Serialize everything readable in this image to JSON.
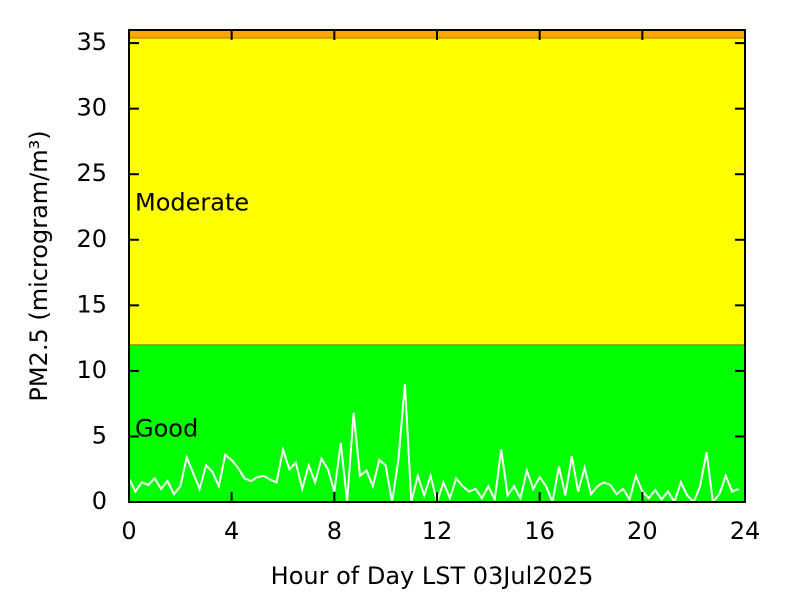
{
  "chart_data": {
    "type": "line",
    "xlabel": "Hour of Day LST 03Jul2025",
    "ylabel": "PM2.5 (microgram/m³)",
    "xlim": [
      0,
      24
    ],
    "xticks": [
      0,
      4,
      8,
      12,
      16,
      20,
      24
    ],
    "ylim": [
      0,
      36
    ],
    "yticks": [
      0,
      5,
      10,
      15,
      20,
      25,
      30,
      35
    ],
    "bands": [
      {
        "name": "Good",
        "from": 0,
        "to": 12,
        "color": "#00ff00"
      },
      {
        "name": "Moderate",
        "from": 12,
        "to": 35.4,
        "color": "#ffff00"
      },
      {
        "from": 35.4,
        "to": 36,
        "color": "#ffa500"
      }
    ],
    "series": [
      {
        "color": "#ffffff",
        "x": [
          0,
          0.25,
          0.5,
          0.75,
          1,
          1.25,
          1.5,
          1.75,
          2,
          2.25,
          2.5,
          2.75,
          3,
          3.25,
          3.5,
          3.75,
          4,
          4.25,
          4.5,
          4.75,
          5,
          5.25,
          5.5,
          5.75,
          6,
          6.25,
          6.5,
          6.75,
          7,
          7.25,
          7.5,
          7.75,
          8,
          8.25,
          8.5,
          8.75,
          9,
          9.25,
          9.5,
          9.75,
          10,
          10.25,
          10.5,
          10.75,
          11,
          11.25,
          11.5,
          11.75,
          12,
          12.25,
          12.5,
          12.75,
          13,
          13.25,
          13.5,
          13.75,
          14,
          14.25,
          14.5,
          14.75,
          15,
          15.25,
          15.5,
          15.75,
          16,
          16.25,
          16.5,
          16.75,
          17,
          17.25,
          17.5,
          17.75,
          18,
          18.25,
          18.5,
          18.75,
          19,
          19.25,
          19.5,
          19.75,
          20,
          20.25,
          20.5,
          20.75,
          21,
          21.25,
          21.5,
          21.75,
          22,
          22.25,
          22.5,
          22.75,
          23,
          23.25,
          23.5,
          23.75
        ],
        "values": [
          1.8,
          0.8,
          1.5,
          1.3,
          1.8,
          1.0,
          1.6,
          0.6,
          1.2,
          3.4,
          2.2,
          1.0,
          2.8,
          2.3,
          1.2,
          3.6,
          3.2,
          2.6,
          1.8,
          1.6,
          1.9,
          2.0,
          1.7,
          1.5,
          4.0,
          2.5,
          3.0,
          1.0,
          2.8,
          1.5,
          3.3,
          2.5,
          0.8,
          4.5,
          0,
          6.8,
          2.0,
          2.4,
          1.2,
          3.2,
          2.8,
          0,
          3.3,
          9.0,
          0,
          2.0,
          0.5,
          2.0,
          0,
          1.5,
          0.3,
          1.8,
          1.2,
          0.8,
          1.0,
          0.3,
          1.2,
          0.2,
          4.0,
          0.5,
          1.2,
          0.3,
          2.4,
          1.0,
          1.9,
          1.2,
          0,
          2.7,
          0.5,
          3.5,
          0.8,
          2.6,
          0.6,
          1.2,
          1.5,
          1.3,
          0.6,
          1.0,
          0.2,
          2.0,
          0.8,
          0.3,
          0.9,
          0.2,
          0.8,
          0,
          1.5,
          0.5,
          0,
          1.2,
          3.8,
          0,
          0.6,
          2.0,
          0.8,
          1.0
        ]
      }
    ]
  }
}
